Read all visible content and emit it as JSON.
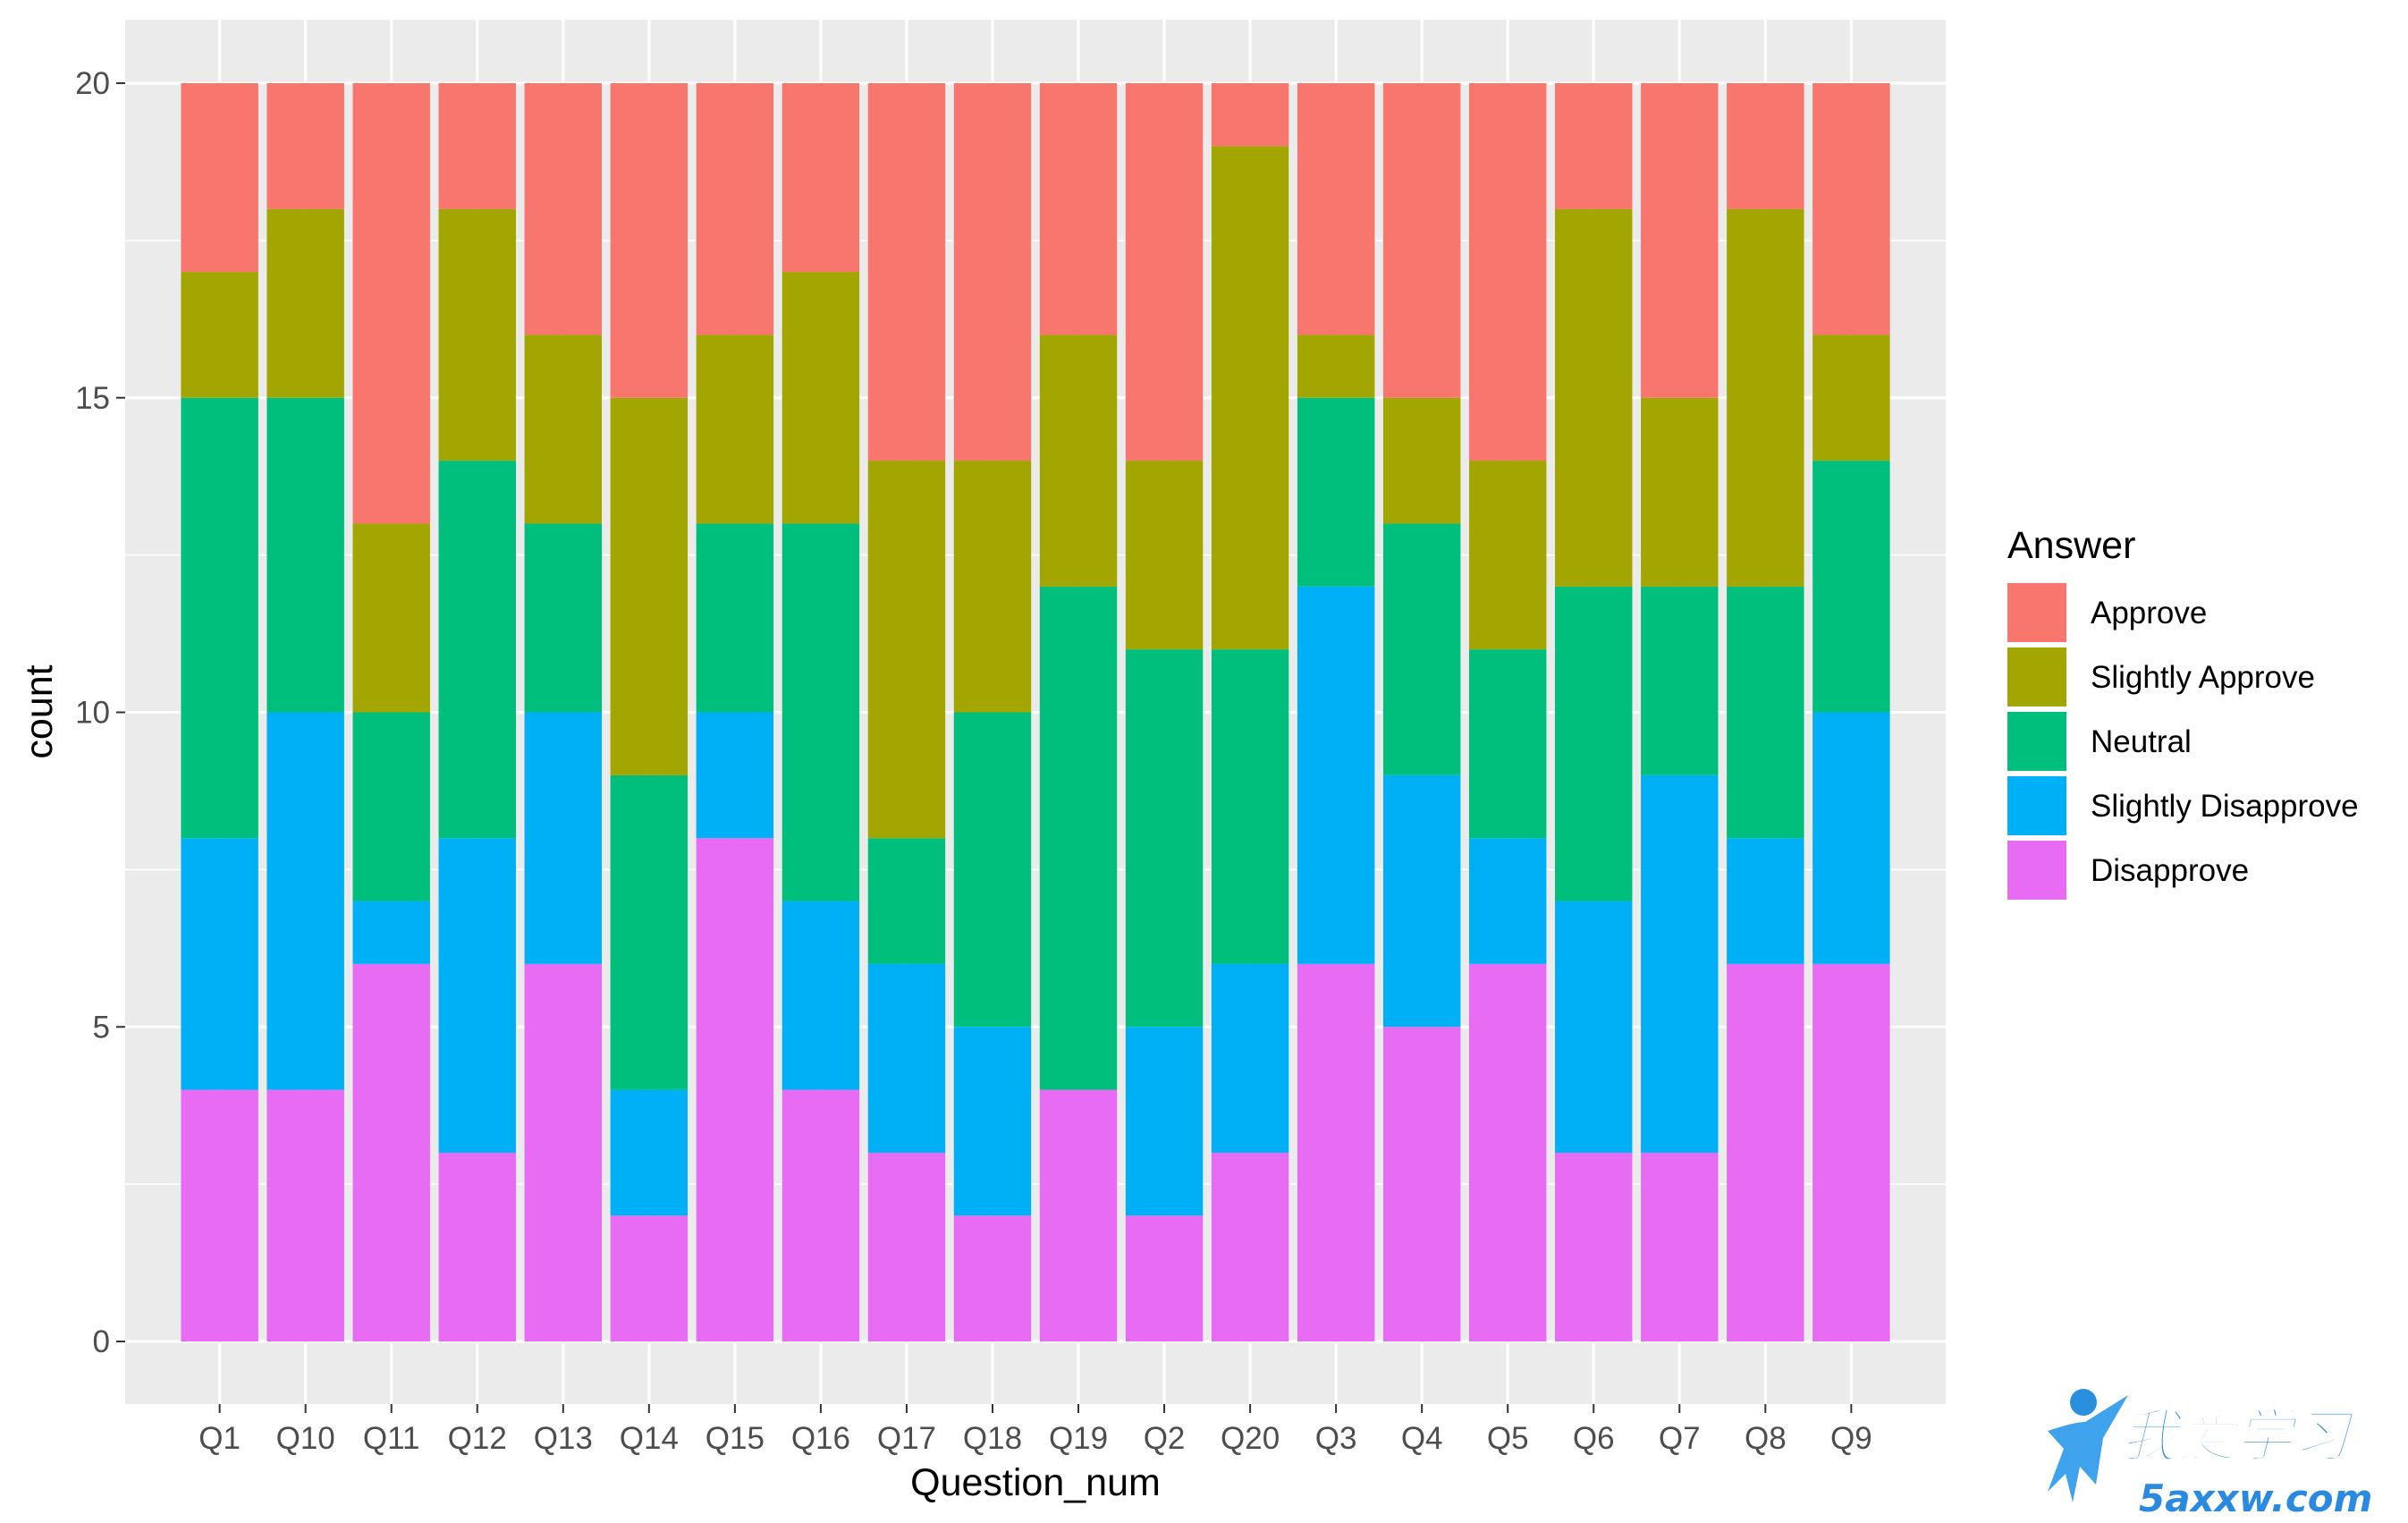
{
  "chart_data": {
    "type": "bar",
    "stacked": true,
    "xlabel": "Question_num",
    "ylabel": "count",
    "ylim": [
      0,
      20
    ],
    "yticks": [
      0,
      5,
      10,
      15,
      20
    ],
    "grid": true,
    "legend_position": "right",
    "legend_title": "Answer",
    "categories": [
      "Q1",
      "Q10",
      "Q11",
      "Q12",
      "Q13",
      "Q14",
      "Q15",
      "Q16",
      "Q17",
      "Q18",
      "Q19",
      "Q2",
      "Q20",
      "Q3",
      "Q4",
      "Q5",
      "Q6",
      "Q7",
      "Q8",
      "Q9"
    ],
    "series": [
      {
        "name": "Approve",
        "color": "#F8766D",
        "values": [
          3,
          2,
          7,
          2,
          4,
          5,
          4,
          3,
          6,
          6,
          4,
          6,
          1,
          4,
          5,
          6,
          2,
          5,
          2,
          4
        ]
      },
      {
        "name": "Slightly Approve",
        "color": "#A3A500",
        "values": [
          2,
          3,
          3,
          4,
          3,
          6,
          3,
          4,
          6,
          4,
          4,
          3,
          8,
          1,
          2,
          3,
          6,
          3,
          6,
          2
        ]
      },
      {
        "name": "Neutral",
        "color": "#00BF7D",
        "values": [
          7,
          5,
          3,
          6,
          3,
          5,
          3,
          6,
          2,
          5,
          8,
          6,
          5,
          3,
          4,
          3,
          5,
          3,
          4,
          4
        ]
      },
      {
        "name": "Slightly Disapprove",
        "color": "#00B0F6",
        "values": [
          4,
          6,
          1,
          5,
          4,
          2,
          2,
          3,
          3,
          3,
          0,
          3,
          3,
          6,
          4,
          2,
          4,
          6,
          2,
          4
        ]
      },
      {
        "name": "Disapprove",
        "color": "#E76BF3",
        "values": [
          4,
          4,
          6,
          3,
          6,
          2,
          8,
          4,
          3,
          2,
          4,
          2,
          3,
          6,
          5,
          6,
          3,
          3,
          6,
          6
        ]
      }
    ]
  },
  "watermark": {
    "logo_text": "我爱学习",
    "url_text": "5axxw.com"
  }
}
